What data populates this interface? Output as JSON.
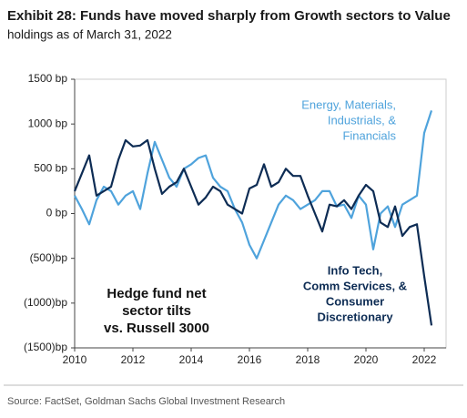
{
  "chart_data": {
    "type": "line",
    "title": "Exhibit 28: Funds have moved sharply from Growth sectors to Value",
    "subtitle": "holdings as of March 31, 2022",
    "source": "Source: FactSet, Goldman Sachs Global Investment Research",
    "x": [
      2010,
      2010.25,
      2010.5,
      2010.75,
      2011,
      2011.25,
      2011.5,
      2011.75,
      2012,
      2012.25,
      2012.5,
      2012.75,
      2013,
      2013.25,
      2013.5,
      2013.75,
      2014,
      2014.25,
      2014.5,
      2014.75,
      2015,
      2015.25,
      2015.5,
      2015.75,
      2016,
      2016.25,
      2016.5,
      2016.75,
      2017,
      2017.25,
      2017.5,
      2017.75,
      2018,
      2018.25,
      2018.5,
      2018.75,
      2019,
      2019.25,
      2019.5,
      2019.75,
      2020,
      2020.25,
      2020.5,
      2020.75,
      2021,
      2021.25,
      2021.5,
      2021.75,
      2022,
      2022.25
    ],
    "xlim": [
      2010,
      2022.75
    ],
    "xticks": [
      2010,
      2012,
      2014,
      2016,
      2018,
      2020,
      2022
    ],
    "ylim": [
      -1500,
      1500
    ],
    "yticks": [
      {
        "value": -1500,
        "label": "(1500)bp"
      },
      {
        "value": -1000,
        "label": "(1000)bp"
      },
      {
        "value": -500,
        "label": "(500)bp"
      },
      {
        "value": 0,
        "label": "0 bp"
      },
      {
        "value": 500,
        "label": "500 bp"
      },
      {
        "value": 1000,
        "label": "1000 bp"
      },
      {
        "value": 1500,
        "label": "1500 bp"
      }
    ],
    "series": [
      {
        "name": "Energy, Materials, Industrials, & Financials",
        "color": "#4fa3dc",
        "label_lines": [
          "Energy, Materials,",
          "Industrials, &",
          "Financials"
        ],
        "values": [
          200,
          50,
          -120,
          150,
          300,
          250,
          100,
          200,
          250,
          50,
          450,
          800,
          600,
          400,
          300,
          500,
          550,
          620,
          650,
          400,
          300,
          250,
          50,
          -100,
          -350,
          -500,
          -300,
          -100,
          100,
          200,
          150,
          50,
          100,
          150,
          250,
          250,
          80,
          100,
          -50,
          200,
          100,
          -400,
          0,
          80,
          -150,
          100,
          150,
          200,
          900,
          1150
        ]
      },
      {
        "name": "Info Tech, Comm Services, & Consumer Discretionary",
        "color": "#0d2c54",
        "label_lines": [
          "Info Tech,",
          "Comm Services, &",
          "Consumer",
          "Discretionary"
        ],
        "values": [
          250,
          450,
          650,
          200,
          250,
          300,
          600,
          820,
          750,
          760,
          820,
          500,
          220,
          300,
          350,
          500,
          300,
          100,
          180,
          300,
          250,
          100,
          50,
          0,
          280,
          320,
          550,
          300,
          350,
          500,
          420,
          420,
          200,
          0,
          -200,
          100,
          80,
          150,
          50,
          200,
          320,
          250,
          -100,
          -150,
          80,
          -250,
          -150,
          -120,
          -700,
          -1250
        ]
      }
    ],
    "annotation_lines": [
      "Hedge fund net",
      "sector tilts",
      "vs. Russell 3000"
    ]
  }
}
